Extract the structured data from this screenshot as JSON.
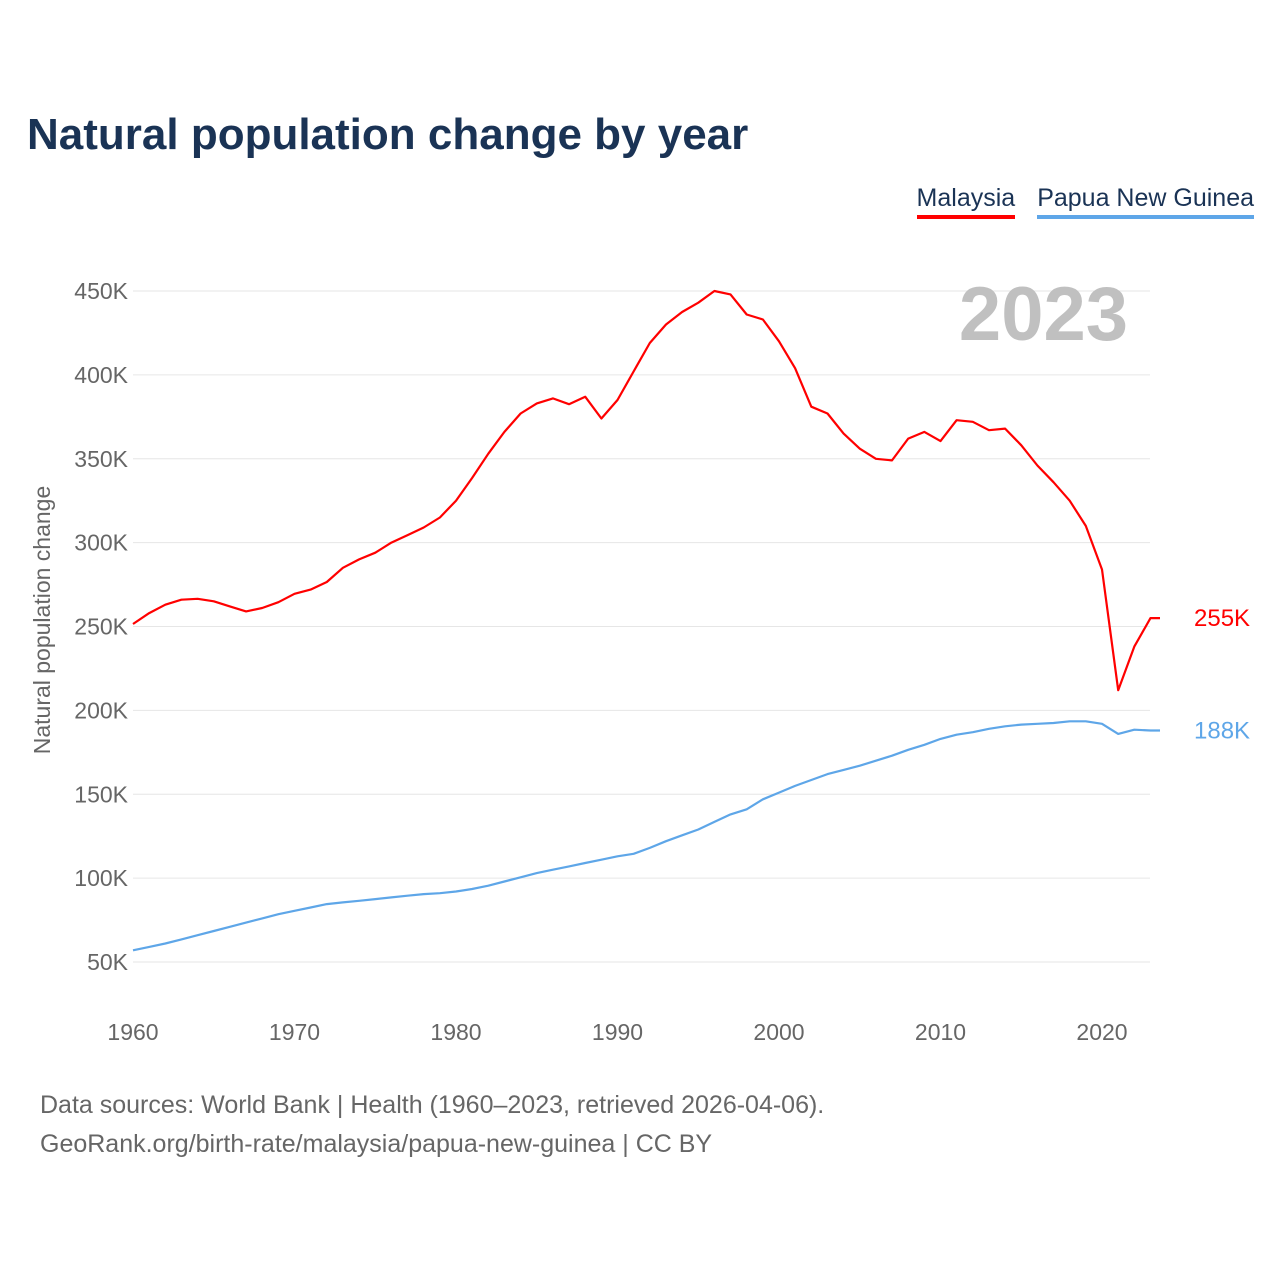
{
  "title": "Natural population change by year",
  "footer": {
    "line1": "Data sources: World Bank | Health (1960–2023, retrieved 2026-04-06).",
    "line2": "GeoRank.org/birth-rate/malaysia/papua-new-guinea | CC BY"
  },
  "chart_data": {
    "type": "line",
    "title": "Natural population change by year",
    "xlabel": "",
    "ylabel": "Natural population change",
    "year_label": "2023",
    "xlim": [
      1960,
      2023
    ],
    "ylim": [
      50000,
      450000
    ],
    "x_ticks": [
      "1960",
      "1970",
      "1980",
      "1990",
      "2000",
      "2010",
      "2020"
    ],
    "y_ticks": [
      {
        "v": 50000,
        "label": "50K"
      },
      {
        "v": 100000,
        "label": "100K"
      },
      {
        "v": 150000,
        "label": "150K"
      },
      {
        "v": 200000,
        "label": "200K"
      },
      {
        "v": 250000,
        "label": "250K"
      },
      {
        "v": 300000,
        "label": "300K"
      },
      {
        "v": 350000,
        "label": "350K"
      },
      {
        "v": 400000,
        "label": "400K"
      },
      {
        "v": 450000,
        "label": "450K"
      }
    ],
    "grid": true,
    "legend_position": "top-right",
    "x_start": 1960,
    "series": [
      {
        "name": "Malaysia",
        "color": "#ff0000",
        "end_label": "255K",
        "flag": "malaysia-flag-icon",
        "values": [
          251500,
          258000,
          263000,
          266000,
          266500,
          265000,
          262000,
          259000,
          261000,
          264500,
          269500,
          272000,
          276500,
          285000,
          290000,
          294000,
          300000,
          304500,
          309000,
          315000,
          325000,
          338500,
          353000,
          366000,
          377000,
          383000,
          386000,
          382500,
          387000,
          374000,
          385000,
          402000,
          419000,
          430000,
          437500,
          443000,
          450000,
          448000,
          436000,
          433000,
          420000,
          404000,
          381000,
          377000,
          365000,
          356000,
          350000,
          349000,
          362000,
          366000,
          360500,
          373000,
          372000,
          367000,
          368000,
          358000,
          346000,
          336000,
          325000,
          310000,
          284000,
          212000,
          238000,
          255000
        ]
      },
      {
        "name": "Papua New Guinea",
        "color": "#5ea6e8",
        "end_label": "188K",
        "flag": "papua-new-guinea-flag-icon",
        "values": [
          57000,
          59000,
          61000,
          63500,
          66000,
          68500,
          71000,
          73500,
          76000,
          78500,
          80500,
          82500,
          84500,
          85500,
          86500,
          87500,
          88500,
          89500,
          90500,
          91000,
          92000,
          93500,
          95500,
          98000,
          100500,
          103000,
          105000,
          107000,
          109000,
          111000,
          113000,
          114500,
          118000,
          122000,
          125500,
          129000,
          133500,
          138000,
          141000,
          147000,
          151000,
          155000,
          158500,
          162000,
          164500,
          167000,
          170000,
          173000,
          176500,
          179500,
          183000,
          185500,
          187000,
          189000,
          190500,
          191500,
          192000,
          192500,
          193500,
          193500,
          192000,
          186000,
          188500,
          188000
        ]
      }
    ]
  }
}
